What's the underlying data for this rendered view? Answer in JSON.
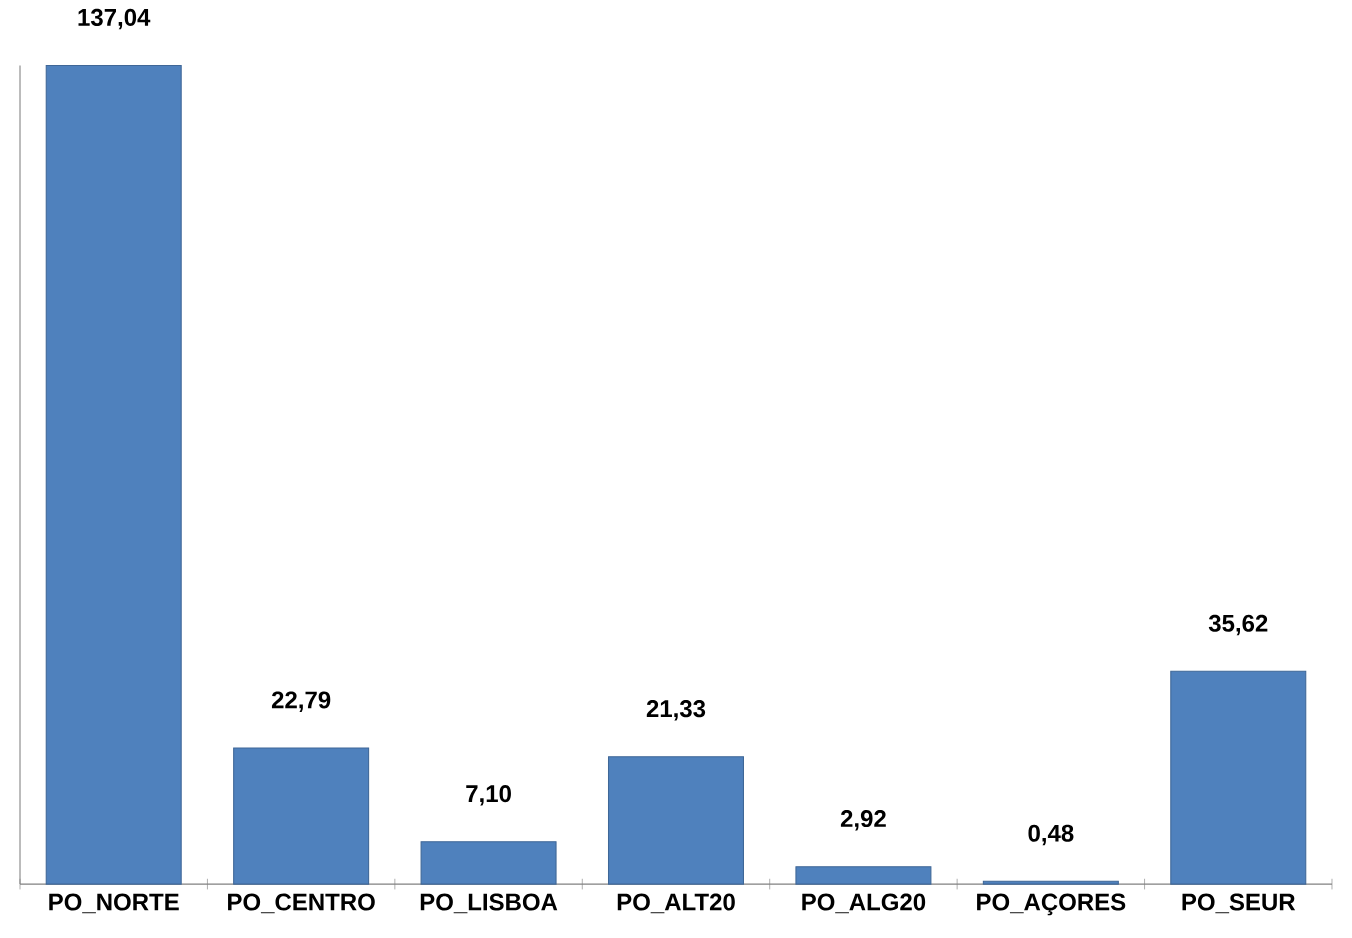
{
  "chart_data": {
    "type": "bar",
    "categories": [
      "PO_NORTE",
      "PO_CENTRO",
      "PO_LISBOA",
      "PO_ALT20",
      "PO_ALG20",
      "PO_AÇORES",
      "PO_SEUR"
    ],
    "values": [
      137.04,
      22.79,
      7.1,
      21.33,
      2.92,
      0.48,
      35.62
    ],
    "value_labels": [
      "137,04",
      "22,79",
      "7,10",
      "21,33",
      "2,92",
      "0,48",
      "35,62"
    ],
    "color": "#4f81bd"
  }
}
